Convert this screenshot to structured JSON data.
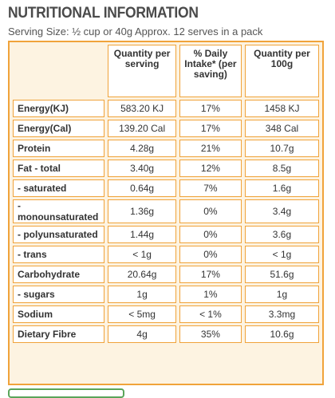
{
  "header": {
    "title": "NUTRITIONAL INFORMATION",
    "serving": "Serving Size: ½ cup or 40g   Approx. 12 serves in a pack"
  },
  "table": {
    "columns": [
      "Quantity per serving",
      "% Daily Intake* (per saving)",
      "Quantity per 100g"
    ],
    "rows": [
      [
        "Energy(KJ)",
        "583.20 KJ",
        "17%",
        "1458 KJ"
      ],
      [
        "Energy(Cal)",
        "139.20 Cal",
        "17%",
        "348 Cal"
      ],
      [
        "Protein",
        "4.28g",
        "21%",
        "10.7g"
      ],
      [
        "Fat - total",
        "3.40g",
        "12%",
        "8.5g"
      ],
      [
        "- saturated",
        "0.64g",
        "7%",
        "1.6g"
      ],
      [
        "- monounsaturated",
        "1.36g",
        "0%",
        "3.4g"
      ],
      [
        "- polyunsaturated",
        "1.44g",
        "0%",
        "3.6g"
      ],
      [
        "- trans",
        "< 1g",
        "0%",
        "< 1g"
      ],
      [
        "Carbohydrate",
        "20.64g",
        "17%",
        "51.6g"
      ],
      [
        "- sugars",
        "1g",
        "1%",
        "1g"
      ],
      [
        "Sodium",
        "< 5mg",
        "< 1%",
        "3.3mg"
      ],
      [
        "Dietary Fibre",
        "4g",
        "35%",
        "10.6g"
      ]
    ]
  }
}
